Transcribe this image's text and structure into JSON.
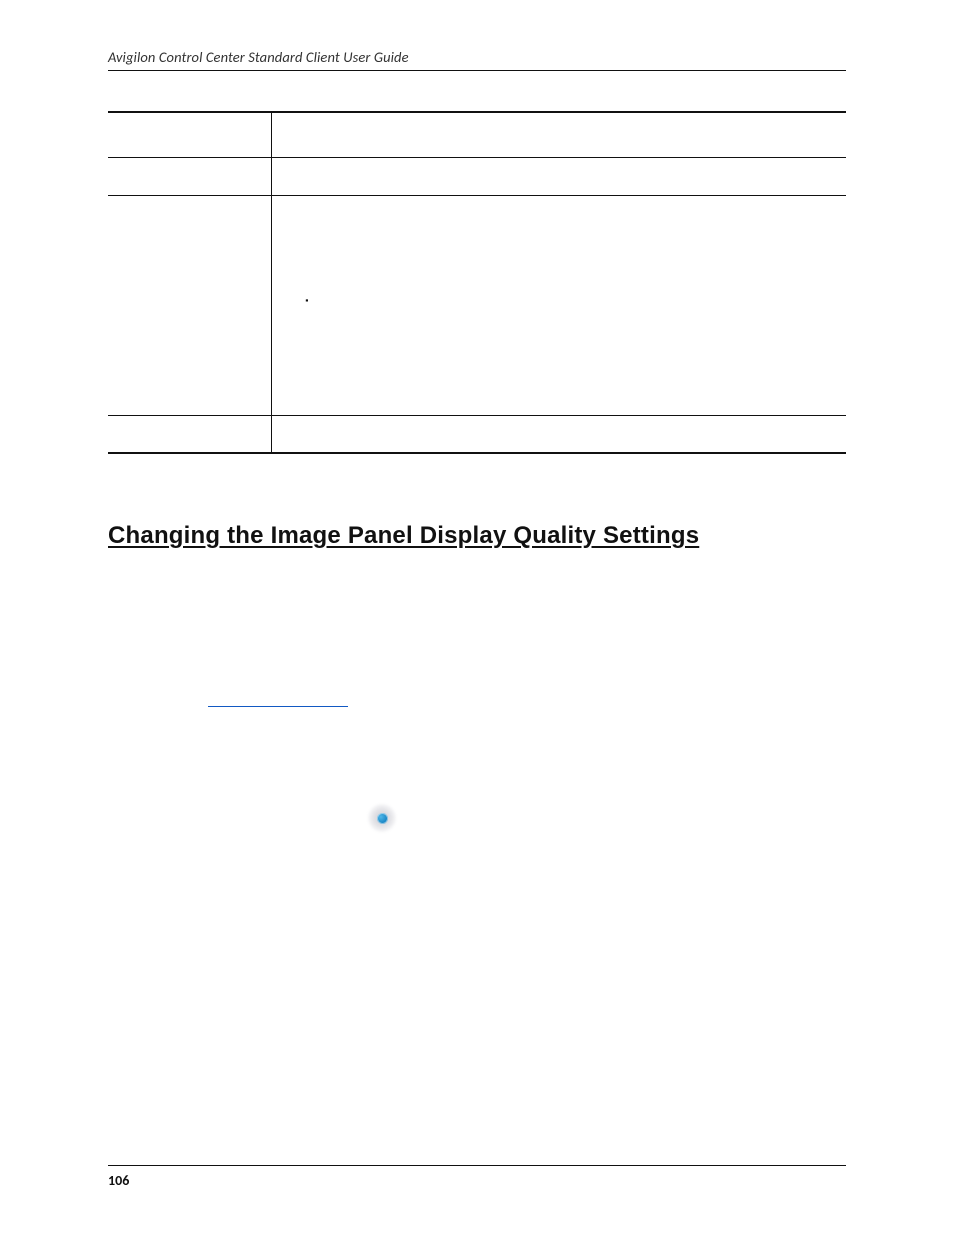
{
  "header": {
    "title": "Avigilon Control Center Standard Client User Guide"
  },
  "table": {
    "bullets": [
      "",
      "",
      ""
    ]
  },
  "heading": {
    "text": "Changing the Image Panel Display Quality Settings"
  },
  "link": {
    "text": ""
  },
  "icon": {
    "name": "display-quality-icon",
    "dot_color": "#1b88c7",
    "halo_color": "#c8c8d0"
  },
  "footer": {
    "page_number": "106"
  },
  "colors": {
    "text": "#111111",
    "header_text": "#323232",
    "rule": "#111111",
    "link_underline": "#1259c3",
    "background": "#ffffff"
  }
}
